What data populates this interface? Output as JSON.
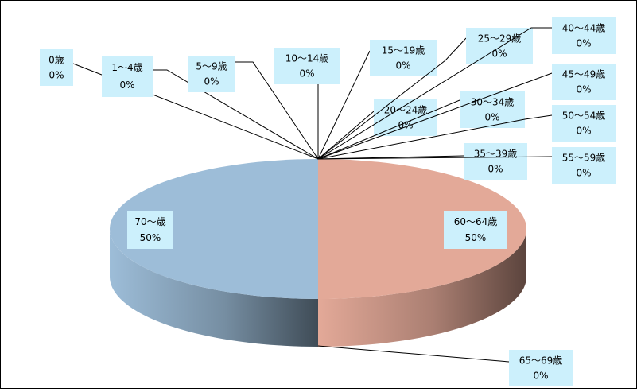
{
  "chart_data": {
    "type": "pie",
    "categories": [
      "0歳",
      "1～4歳",
      "5～9歳",
      "10～14歳",
      "15～19歳",
      "20～24歳",
      "25～29歳",
      "30～34歳",
      "35～39歳",
      "40～44歳",
      "45～49歳",
      "50～54歳",
      "55～59歳",
      "60～64歳",
      "65～69歳",
      "70～歳"
    ],
    "values": [
      0,
      0,
      0,
      0,
      0,
      0,
      0,
      0,
      0,
      0,
      0,
      0,
      0,
      50,
      0,
      50
    ],
    "value_labels": [
      "0%",
      "0%",
      "0%",
      "0%",
      "0%",
      "0%",
      "0%",
      "0%",
      "0%",
      "0%",
      "0%",
      "0%",
      "0%",
      "50%",
      "0%",
      "50%"
    ],
    "colors": [
      "#9dbdd8",
      "#e3a998",
      "#9dbdd8",
      "#e3a998",
      "#9dbdd8",
      "#e3a998",
      "#9dbdd8",
      "#e3a998",
      "#9dbdd8",
      "#e3a998",
      "#9dbdd8",
      "#e3a998",
      "#9dbdd8",
      "#e3a998",
      "#c6d8a0",
      "#9dbdd8"
    ]
  }
}
